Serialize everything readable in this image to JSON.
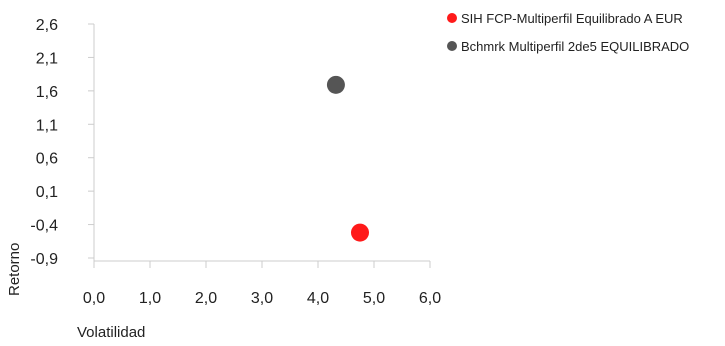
{
  "chart_data": {
    "type": "scatter",
    "title": "",
    "xlabel": "Volatilidad",
    "ylabel": "Retorno",
    "xlim": [
      0,
      6
    ],
    "ylim": [
      -0.9,
      2.6
    ],
    "x_ticks": [
      "0,0",
      "1,0",
      "2,0",
      "3,0",
      "4,0",
      "5,0",
      "6,0"
    ],
    "y_ticks": [
      "2,6",
      "2,1",
      "1,6",
      "1,1",
      "0,6",
      "0,1",
      "-0,4",
      "-0,9"
    ],
    "grid": false,
    "legend": "top-right",
    "series": [
      {
        "name": "SIH FCP-Multiperfil Equilibrado A EUR",
        "color": "#ff1a1a",
        "x": 4.75,
        "y": -0.52
      },
      {
        "name": "Bchmrk Multiperfil 2de5 EQUILIBRADO",
        "color": "#555555",
        "x": 4.32,
        "y": 1.69
      }
    ]
  }
}
